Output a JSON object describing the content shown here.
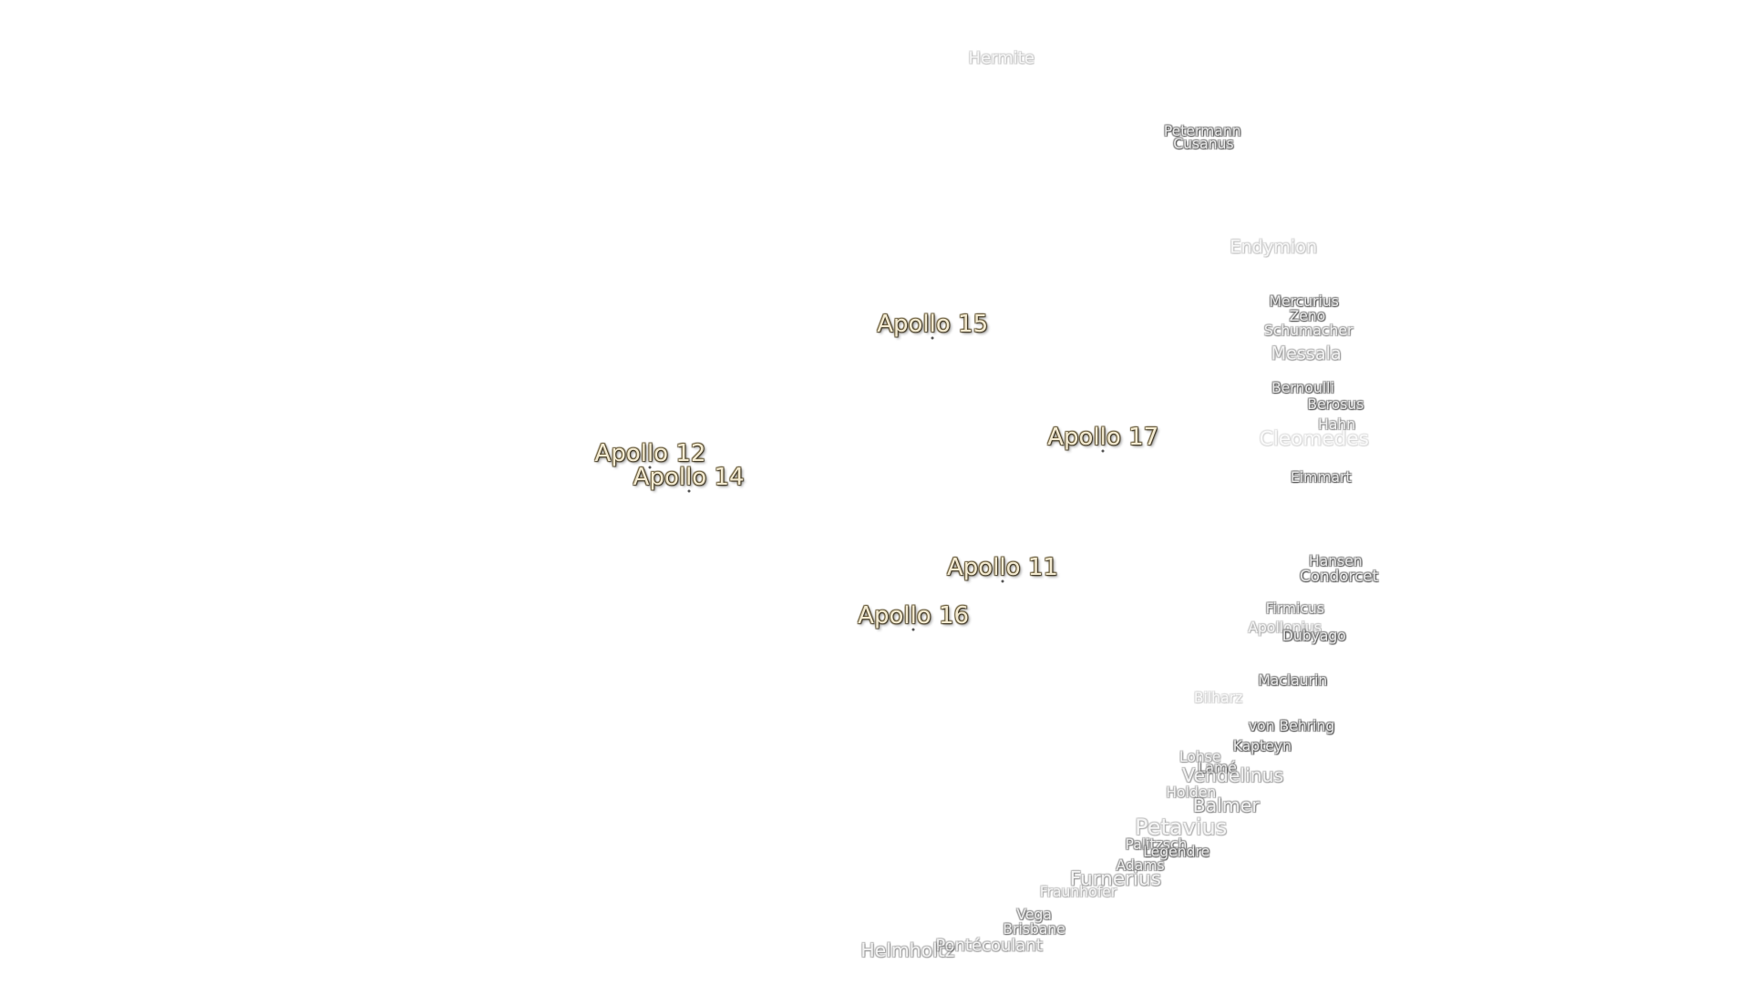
{
  "apollo_sites": [
    "Apollo 15",
    "Apollo 12",
    "Apollo 14",
    "Apollo 17",
    "Apollo 11",
    "Apollo 16"
  ],
  "craters": [
    "Hermite",
    "Petermann",
    "Cusanus",
    "Endymion",
    "Mercurius",
    "Zeno",
    "Schumacher",
    "Messala",
    "Bernoulli",
    "Berosus",
    "Hahn",
    "Cleomedes",
    "Eimmart",
    "Hansen",
    "Condorcet",
    "Firmicus",
    "Apollonius",
    "Dubyago",
    "Maclaurin",
    "Bilharz",
    "von Behring",
    "Kapteyn",
    "Lohse",
    "Lamé",
    "Vendelinus",
    "Holden",
    "Balmer",
    "Petavius",
    "Palitzsch",
    "Legendre",
    "Adams",
    "Furnerius",
    "Fraunhofer",
    "Vega",
    "Brisbane",
    "Helmholtz",
    "Pontécoulant"
  ]
}
